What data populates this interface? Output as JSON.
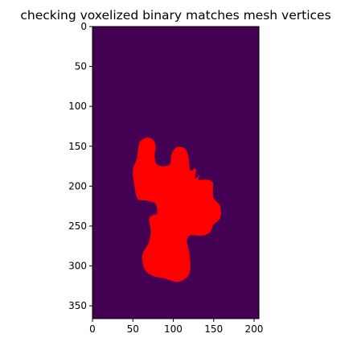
{
  "chart_data": {
    "type": "heatmap",
    "title": "checking voxelized binary matches mesh vertices",
    "xlabel": "",
    "ylabel": "",
    "xlim": [
      0,
      206
    ],
    "ylim": [
      366,
      0
    ],
    "x_ticks": [
      0,
      50,
      100,
      150,
      200
    ],
    "y_ticks": [
      0,
      50,
      100,
      150,
      200,
      250,
      300,
      350
    ],
    "background_color": "#440154",
    "overlay_color": "#ff0000",
    "grid": false,
    "legend": "none",
    "overlay_region_outline": [
      [
        68,
        139
      ],
      [
        75,
        142
      ],
      [
        78,
        150
      ],
      [
        77,
        162
      ],
      [
        79,
        172
      ],
      [
        87,
        175
      ],
      [
        96,
        172
      ],
      [
        98,
        160
      ],
      [
        103,
        152
      ],
      [
        110,
        151
      ],
      [
        116,
        155
      ],
      [
        119,
        165
      ],
      [
        121,
        180
      ],
      [
        128,
        178
      ],
      [
        127,
        190
      ],
      [
        133,
        186
      ],
      [
        131,
        192
      ],
      [
        143,
        192
      ],
      [
        149,
        196
      ],
      [
        149,
        202
      ],
      [
        150,
        215
      ],
      [
        158,
        225
      ],
      [
        158,
        240
      ],
      [
        150,
        248
      ],
      [
        145,
        258
      ],
      [
        135,
        262
      ],
      [
        120,
        262
      ],
      [
        117,
        270
      ],
      [
        120,
        285
      ],
      [
        121,
        305
      ],
      [
        116,
        315
      ],
      [
        105,
        320
      ],
      [
        90,
        316
      ],
      [
        74,
        312
      ],
      [
        65,
        305
      ],
      [
        62,
        295
      ],
      [
        62,
        285
      ],
      [
        70,
        270
      ],
      [
        72,
        255
      ],
      [
        70,
        241
      ],
      [
        75,
        236
      ],
      [
        80,
        234
      ],
      [
        78,
        222
      ],
      [
        67,
        218
      ],
      [
        56,
        216
      ],
      [
        52,
        200
      ],
      [
        50,
        180
      ],
      [
        55,
        165
      ],
      [
        57,
        150
      ],
      [
        60,
        143
      ]
    ]
  }
}
